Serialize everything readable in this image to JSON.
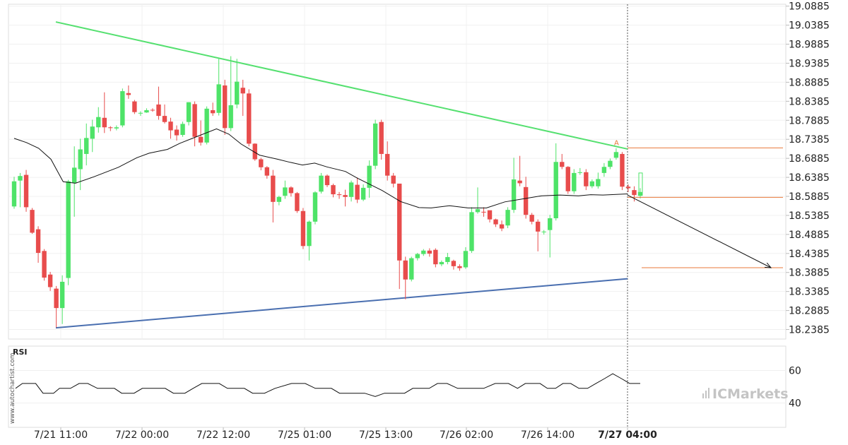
{
  "chart_data": {
    "type": "candlestick",
    "watermark": "www.autochartist.com",
    "logo": "ICMarkets",
    "indicator_label": "RSI",
    "y_axis": {
      "ticks": [
        "19.0885",
        "19.0385",
        "18.9885",
        "18.9385",
        "18.8885",
        "18.8385",
        "18.7885",
        "18.7385",
        "18.6885",
        "18.6385",
        "18.5885",
        "18.5385",
        "18.4885",
        "18.4385",
        "18.3885",
        "18.3385",
        "18.2885",
        "18.2385"
      ],
      "range": [
        18.2135,
        19.0935
      ]
    },
    "rsi_axis": {
      "ticks": [
        "60",
        "40"
      ],
      "range": [
        25,
        75
      ]
    },
    "x_axis": {
      "ticks": [
        {
          "label": "7/21 11:00",
          "bold": false
        },
        {
          "label": "7/22 00:00",
          "bold": false
        },
        {
          "label": "7/22 12:00",
          "bold": false
        },
        {
          "label": "7/25 01:00",
          "bold": false
        },
        {
          "label": "7/25 13:00",
          "bold": false
        },
        {
          "label": "7/26 02:00",
          "bold": false
        },
        {
          "label": "7/26 14:00",
          "bold": false
        },
        {
          "label": "7/27 04:00",
          "bold": true
        }
      ]
    },
    "pattern": {
      "name": "Triangle",
      "point_label": "A",
      "upper_line": {
        "start": 19.047,
        "end": 18.713
      },
      "lower_line": {
        "start": 18.243,
        "end": 18.372
      },
      "levels": [
        18.716,
        18.586,
        18.401
      ]
    },
    "candles": [
      [
        18.562,
        18.628,
        18.556,
        18.64
      ],
      [
        18.63,
        18.642,
        18.56,
        18.65
      ],
      [
        18.645,
        18.56,
        18.548,
        18.658
      ],
      [
        18.553,
        18.493,
        18.49,
        18.558
      ],
      [
        18.502,
        18.44,
        18.414,
        18.51
      ],
      [
        18.445,
        18.375,
        18.367,
        18.45
      ],
      [
        18.383,
        18.35,
        18.34,
        18.39
      ],
      [
        18.346,
        18.295,
        18.244,
        18.353
      ],
      [
        18.295,
        18.364,
        18.253,
        18.381
      ],
      [
        18.374,
        18.628,
        18.355,
        18.632
      ],
      [
        18.624,
        18.664,
        18.535,
        18.72
      ],
      [
        18.66,
        18.712,
        18.605,
        18.74
      ],
      [
        18.7,
        18.742,
        18.67,
        18.78
      ],
      [
        18.74,
        18.772,
        18.705,
        18.79
      ],
      [
        18.77,
        18.797,
        18.756,
        18.823
      ],
      [
        18.795,
        18.77,
        18.755,
        18.862
      ],
      [
        18.77,
        18.768,
        18.76,
        18.773
      ],
      [
        18.767,
        18.77,
        18.762,
        18.775
      ],
      [
        18.775,
        18.865,
        18.77,
        18.872
      ],
      [
        18.86,
        18.855,
        18.845,
        18.88
      ],
      [
        18.838,
        18.81,
        18.805,
        18.842
      ],
      [
        18.808,
        18.808,
        18.8,
        18.812
      ],
      [
        18.809,
        18.815,
        18.808,
        18.82
      ],
      [
        18.816,
        18.815,
        18.811,
        18.82
      ],
      [
        18.83,
        18.8,
        18.79,
        18.877
      ],
      [
        18.8,
        18.784,
        18.78,
        18.83
      ],
      [
        18.785,
        18.762,
        18.74,
        18.795
      ],
      [
        18.764,
        18.749,
        18.735,
        18.775
      ],
      [
        18.75,
        18.779,
        18.745,
        18.785
      ],
      [
        18.784,
        18.836,
        18.775,
        18.836
      ],
      [
        18.831,
        18.745,
        18.72,
        18.838
      ],
      [
        18.745,
        18.73,
        18.722,
        18.788
      ],
      [
        18.73,
        18.819,
        18.725,
        18.825
      ],
      [
        18.815,
        18.807,
        18.8,
        18.835
      ],
      [
        18.808,
        18.883,
        18.801,
        18.95
      ],
      [
        18.88,
        18.768,
        18.75,
        18.895
      ],
      [
        18.768,
        18.828,
        18.76,
        18.957
      ],
      [
        18.83,
        18.89,
        18.82,
        18.95
      ],
      [
        18.874,
        18.859,
        18.8,
        18.895
      ],
      [
        18.859,
        18.727,
        18.72,
        18.87
      ],
      [
        18.727,
        18.686,
        18.682,
        18.728
      ],
      [
        18.686,
        18.665,
        18.657,
        18.69
      ],
      [
        18.665,
        18.643,
        18.635,
        18.668
      ],
      [
        18.643,
        18.574,
        18.52,
        18.658
      ],
      [
        18.574,
        18.587,
        18.565,
        18.59
      ],
      [
        18.59,
        18.612,
        18.582,
        18.63
      ],
      [
        18.612,
        18.597,
        18.588,
        18.615
      ],
      [
        18.597,
        18.55,
        18.545,
        18.6
      ],
      [
        18.55,
        18.458,
        18.45,
        18.558
      ],
      [
        18.458,
        18.522,
        18.42,
        18.525
      ],
      [
        18.522,
        18.599,
        18.515,
        18.602
      ],
      [
        18.601,
        18.643,
        18.596,
        18.65
      ],
      [
        18.643,
        18.618,
        18.613,
        18.646
      ],
      [
        18.618,
        18.594,
        18.586,
        18.622
      ],
      [
        18.594,
        18.592,
        18.582,
        18.6
      ],
      [
        18.592,
        18.587,
        18.562,
        18.606
      ],
      [
        18.587,
        18.625,
        18.575,
        18.63
      ],
      [
        18.619,
        18.58,
        18.571,
        18.638
      ],
      [
        18.58,
        18.611,
        18.576,
        18.62
      ],
      [
        18.611,
        18.669,
        18.585,
        18.683
      ],
      [
        18.669,
        18.78,
        18.66,
        18.79
      ],
      [
        18.784,
        18.7,
        18.685,
        18.79
      ],
      [
        18.7,
        18.643,
        18.63,
        18.733
      ],
      [
        18.643,
        18.622,
        18.612,
        18.65
      ],
      [
        18.622,
        18.42,
        18.345,
        18.622
      ],
      [
        18.42,
        18.37,
        18.318,
        18.43
      ],
      [
        18.37,
        18.426,
        18.365,
        18.43
      ],
      [
        18.426,
        18.437,
        18.42,
        18.44
      ],
      [
        18.437,
        18.446,
        18.432,
        18.45
      ],
      [
        18.446,
        18.438,
        18.43,
        18.452
      ],
      [
        18.448,
        18.41,
        18.402,
        18.452
      ],
      [
        18.41,
        18.416,
        18.405,
        18.42
      ],
      [
        18.416,
        18.429,
        18.41,
        18.44
      ],
      [
        18.419,
        18.405,
        18.396,
        18.422
      ],
      [
        18.405,
        18.4,
        18.393,
        18.41
      ],
      [
        18.402,
        18.445,
        18.398,
        18.455
      ],
      [
        18.445,
        18.547,
        18.44,
        18.56
      ],
      [
        18.547,
        18.555,
        18.543,
        18.612
      ],
      [
        18.548,
        18.546,
        18.535,
        18.56
      ],
      [
        18.552,
        18.528,
        18.52,
        18.545
      ],
      [
        18.528,
        18.515,
        18.508,
        18.53
      ],
      [
        18.515,
        18.504,
        18.497,
        18.525
      ],
      [
        18.512,
        18.553,
        18.505,
        18.56
      ],
      [
        18.553,
        18.633,
        18.545,
        18.69
      ],
      [
        18.63,
        18.623,
        18.615,
        18.695
      ],
      [
        18.613,
        18.54,
        18.53,
        18.64
      ],
      [
        18.54,
        18.522,
        18.515,
        18.545
      ],
      [
        18.522,
        18.496,
        18.444,
        18.528
      ],
      [
        18.496,
        18.496,
        18.488,
        18.5
      ],
      [
        18.5,
        18.531,
        18.428,
        18.54
      ],
      [
        18.531,
        18.679,
        18.525,
        18.728
      ],
      [
        18.679,
        18.666,
        18.66,
        18.7
      ],
      [
        18.666,
        18.602,
        18.595,
        18.668
      ],
      [
        18.602,
        18.65,
        18.595,
        18.66
      ],
      [
        18.65,
        18.652,
        18.645,
        18.663
      ],
      [
        18.652,
        18.615,
        18.605,
        18.66
      ],
      [
        18.615,
        18.628,
        18.61,
        18.633
      ],
      [
        18.615,
        18.634,
        18.609,
        18.651
      ],
      [
        18.65,
        18.666,
        18.64,
        18.676
      ],
      [
        18.666,
        18.682,
        18.66,
        18.688
      ],
      [
        18.69,
        18.705,
        18.685,
        18.715
      ],
      [
        18.7,
        18.614,
        18.605,
        18.705
      ],
      [
        18.614,
        18.61,
        18.6,
        18.62
      ],
      [
        18.605,
        18.592,
        18.575,
        18.615
      ],
      [
        18.59,
        18.6,
        18.583,
        18.61
      ]
    ],
    "moving_average": [
      [
        0.0,
        18.741
      ],
      [
        0.02,
        18.73
      ],
      [
        0.04,
        18.715
      ],
      [
        0.06,
        18.686
      ],
      [
        0.08,
        18.627
      ],
      [
        0.1,
        18.623
      ],
      [
        0.13,
        18.64
      ],
      [
        0.17,
        18.665
      ],
      [
        0.2,
        18.69
      ],
      [
        0.22,
        18.702
      ],
      [
        0.25,
        18.712
      ],
      [
        0.27,
        18.728
      ],
      [
        0.3,
        18.747
      ],
      [
        0.33,
        18.766
      ],
      [
        0.35,
        18.752
      ],
      [
        0.37,
        18.726
      ],
      [
        0.4,
        18.697
      ],
      [
        0.43,
        18.686
      ],
      [
        0.45,
        18.678
      ],
      [
        0.47,
        18.671
      ],
      [
        0.49,
        18.676
      ],
      [
        0.51,
        18.666
      ],
      [
        0.54,
        18.654
      ],
      [
        0.56,
        18.636
      ],
      [
        0.6,
        18.604
      ],
      [
        0.63,
        18.575
      ],
      [
        0.66,
        18.559
      ],
      [
        0.68,
        18.558
      ],
      [
        0.71,
        18.564
      ],
      [
        0.74,
        18.558
      ],
      [
        0.77,
        18.558
      ],
      [
        0.8,
        18.574
      ],
      [
        0.83,
        18.582
      ],
      [
        0.86,
        18.59
      ],
      [
        0.89,
        18.592
      ],
      [
        0.92,
        18.59
      ],
      [
        0.94,
        18.593
      ],
      [
        0.96,
        18.592
      ],
      [
        1.0,
        18.595
      ]
    ],
    "rsi": [
      [
        0.0,
        49
      ],
      [
        0.015,
        52
      ],
      [
        0.044,
        52
      ],
      [
        0.06,
        46
      ],
      [
        0.083,
        46
      ],
      [
        0.096,
        49
      ],
      [
        0.12,
        49
      ],
      [
        0.139,
        52
      ],
      [
        0.158,
        52
      ],
      [
        0.179,
        49
      ],
      [
        0.216,
        49
      ],
      [
        0.232,
        46
      ],
      [
        0.259,
        46
      ],
      [
        0.277,
        49
      ],
      [
        0.327,
        49
      ],
      [
        0.345,
        46
      ],
      [
        0.37,
        46
      ],
      [
        0.388,
        49
      ],
      [
        0.407,
        52
      ],
      [
        0.445,
        52
      ],
      [
        0.463,
        49
      ],
      [
        0.5,
        49
      ],
      [
        0.518,
        46
      ],
      [
        0.544,
        46
      ],
      [
        0.567,
        49
      ],
      [
        0.603,
        52
      ],
      [
        0.633,
        52
      ],
      [
        0.655,
        49
      ],
      [
        0.69,
        49
      ],
      [
        0.708,
        46
      ],
      [
        0.763,
        46
      ],
      [
        0.786,
        44
      ],
      [
        0.806,
        46
      ],
      [
        0.85,
        46
      ],
      [
        0.868,
        49
      ],
      [
        0.904,
        49
      ],
      [
        0.922,
        52
      ],
      [
        0.943,
        52
      ],
      [
        0.966,
        49
      ],
      [
        0.984,
        49
      ],
      [
        1.0,
        49
      ],
      [
        1.023,
        49
      ],
      [
        1.048,
        52
      ],
      [
        1.077,
        52
      ],
      [
        1.097,
        49
      ],
      [
        1.114,
        52
      ],
      [
        1.13,
        52
      ],
      [
        1.146,
        52
      ],
      [
        1.162,
        49
      ],
      [
        1.18,
        49
      ],
      [
        1.196,
        52
      ],
      [
        1.213,
        52
      ],
      [
        1.231,
        49
      ],
      [
        1.25,
        49
      ],
      [
        1.268,
        52
      ],
      [
        1.287,
        55
      ],
      [
        1.305,
        58
      ],
      [
        1.324,
        55
      ],
      [
        1.342,
        52
      ],
      [
        1.365,
        52
      ]
    ]
  }
}
